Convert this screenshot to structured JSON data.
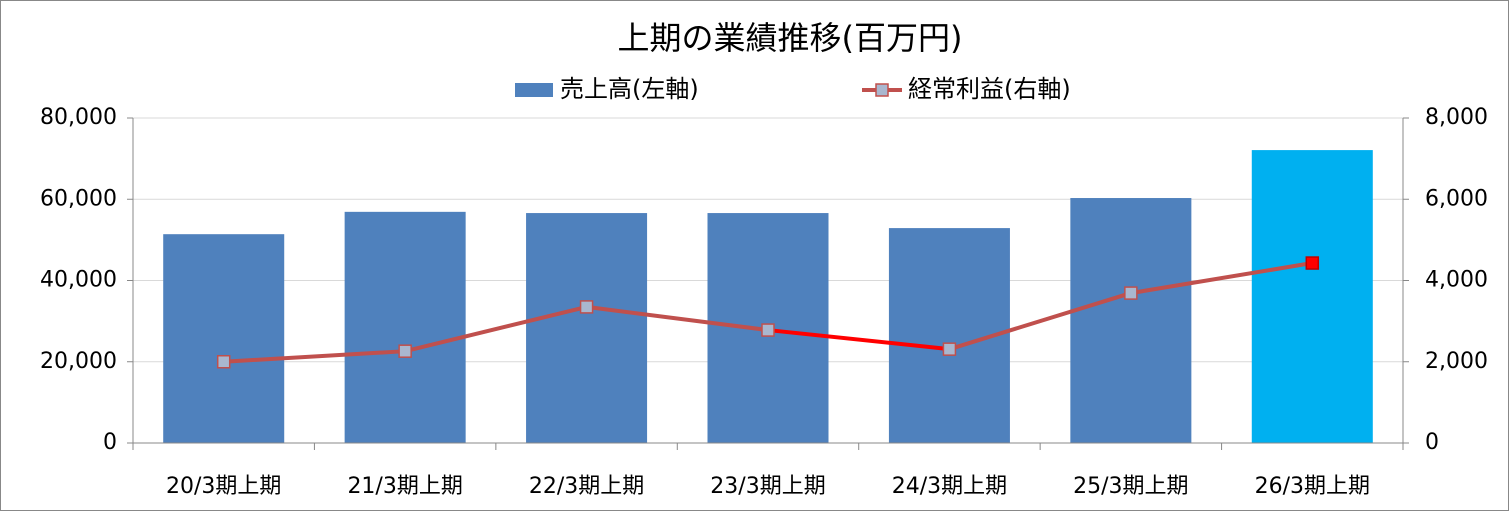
{
  "chart_data": {
    "type": "bar_line",
    "title": "上期の業績推移(百万円)",
    "categories": [
      "20/3期上期",
      "21/3期上期",
      "22/3期上期",
      "23/3期上期",
      "24/3期上期",
      "25/3期上期",
      "26/3期上期"
    ],
    "series": [
      {
        "name": "売上高(左軸)",
        "type": "bar",
        "axis": "y",
        "color": "#4f81bd",
        "point_colors": [
          "#4f81bd",
          "#4f81bd",
          "#4f81bd",
          "#4f81bd",
          "#4f81bd",
          "#4f81bd",
          "#00b0f0"
        ],
        "values": [
          51400,
          56900,
          56600,
          56600,
          52900,
          60300,
          72100
        ]
      },
      {
        "name": "経常利益(右軸)",
        "type": "line",
        "axis": "y2",
        "color": "#c0504d",
        "marker_color": "#a9b7cf",
        "point_colors": [
          "#a9b7cf",
          "#a9b7cf",
          "#a9b7cf",
          "#a9b7cf",
          "#a9b7cf",
          "#a9b7cf",
          "#ff0000"
        ],
        "segment_colors": [
          "#c0504d",
          "#c0504d",
          "#c0504d",
          "#ff0000",
          "#c0504d",
          "#c0504d"
        ],
        "values": [
          2000,
          2260,
          3350,
          2780,
          2310,
          3690,
          4430
        ]
      }
    ],
    "ylim": [
      0,
      80000
    ],
    "yticks": [
      0,
      {
        "value": 20000,
        "label": "20,000"
      },
      {
        "value": 40000,
        "label": "40,000"
      },
      {
        "value": 60000,
        "label": "60,000"
      },
      {
        "value": 80000,
        "label": "80,000"
      }
    ],
    "y2lim": [
      0,
      8000
    ],
    "y2ticks": [
      0,
      {
        "value": 2000,
        "label": "2,000"
      },
      {
        "value": 4000,
        "label": "4,000"
      },
      {
        "value": 6000,
        "label": "6,000"
      },
      {
        "value": 8000,
        "label": "8,000"
      }
    ],
    "grid": true,
    "legend": "top"
  }
}
